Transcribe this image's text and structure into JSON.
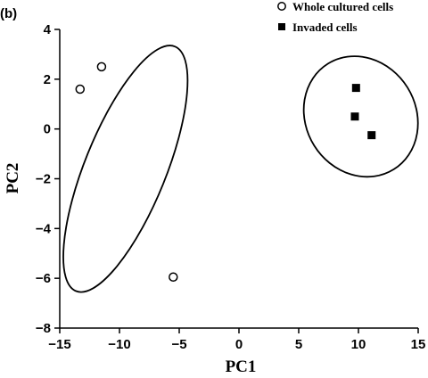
{
  "panel_label": "(b)",
  "chart_data": {
    "type": "scatter",
    "xlabel": "PC1",
    "ylabel": "PC2",
    "xlim": [
      -15,
      15
    ],
    "ylim": [
      -8,
      4
    ],
    "x_ticks": [
      -15,
      -10,
      -5,
      0,
      5,
      10,
      15
    ],
    "y_ticks": [
      -8,
      -6,
      -4,
      -2,
      0,
      2,
      4
    ],
    "x_tick_labels": [
      "−15",
      "−10",
      "−5",
      "0",
      "5",
      "10",
      "15"
    ],
    "y_tick_labels": [
      "−8",
      "−6",
      "−4",
      "−2",
      "0",
      "2",
      "4"
    ],
    "grid": false,
    "legend_position": "top-right",
    "series": [
      {
        "name": "Whole cultured cells",
        "marker": "open-circle",
        "color": "#000000",
        "points": [
          {
            "x": -13.3,
            "y": 1.6
          },
          {
            "x": -11.5,
            "y": 2.5
          },
          {
            "x": -5.5,
            "y": -5.95
          }
        ]
      },
      {
        "name": "Invaded cells",
        "marker": "filled-square",
        "color": "#000000",
        "points": [
          {
            "x": 9.8,
            "y": 1.65
          },
          {
            "x": 9.7,
            "y": 0.5
          },
          {
            "x": 11.1,
            "y": -0.25
          }
        ]
      }
    ],
    "annotations": [
      {
        "type": "ellipse",
        "group": "Whole cultured cells",
        "center": [
          -9.5,
          -1.6
        ],
        "semi_axes": [
          3.4,
          5.3
        ],
        "rotation_deg": 22
      },
      {
        "type": "ellipse",
        "group": "Invaded cells",
        "center": [
          10.2,
          0.5
        ],
        "semi_axes": [
          4.6,
          2.5
        ],
        "rotation_deg": -32
      }
    ]
  }
}
